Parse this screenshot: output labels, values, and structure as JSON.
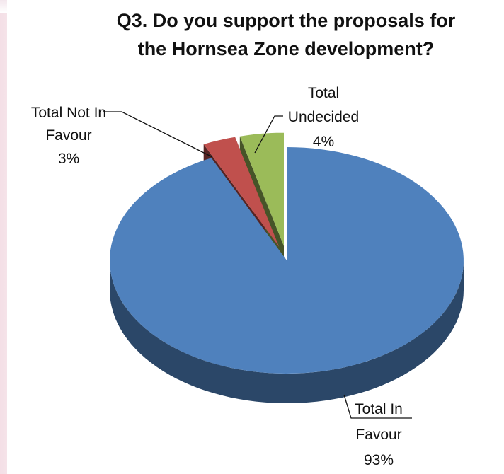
{
  "chart_data": {
    "type": "pie",
    "title_lines": [
      "Q3. Do you support the proposals for",
      "the Hornsea Zone development?"
    ],
    "slices": [
      {
        "label_lines": [
          "Total In",
          "Favour"
        ],
        "value": 93,
        "value_label": "93%",
        "color": "#4f81bd",
        "exploded": false
      },
      {
        "label_lines": [
          "Total Not In",
          "Favour"
        ],
        "value": 3,
        "value_label": "3%",
        "color": "#c0504d",
        "exploded": true
      },
      {
        "label_lines": [
          "Total",
          "Undecided"
        ],
        "value": 4,
        "value_label": "4%",
        "color": "#9bbb59",
        "exploded": true
      }
    ],
    "three_d": true,
    "legend": "none"
  }
}
